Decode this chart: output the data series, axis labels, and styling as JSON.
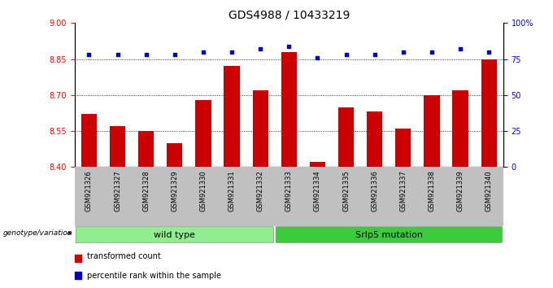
{
  "title": "GDS4988 / 10433219",
  "samples": [
    "GSM921326",
    "GSM921327",
    "GSM921328",
    "GSM921329",
    "GSM921330",
    "GSM921331",
    "GSM921332",
    "GSM921333",
    "GSM921334",
    "GSM921335",
    "GSM921336",
    "GSM921337",
    "GSM921338",
    "GSM921339",
    "GSM921340"
  ],
  "red_values": [
    8.62,
    8.57,
    8.55,
    8.5,
    8.68,
    8.82,
    8.72,
    8.88,
    8.42,
    8.65,
    8.63,
    8.56,
    8.7,
    8.72,
    8.85
  ],
  "blue_values": [
    78,
    78,
    78,
    78,
    80,
    80,
    82,
    84,
    76,
    78,
    78,
    80,
    80,
    82,
    80
  ],
  "ylim_left": [
    8.4,
    9.0
  ],
  "ylim_right": [
    0,
    100
  ],
  "left_ticks": [
    8.4,
    8.55,
    8.7,
    8.85,
    9.0
  ],
  "right_ticks": [
    0,
    25,
    50,
    75,
    100
  ],
  "right_tick_labels": [
    "0",
    "25",
    "50",
    "75",
    "100%"
  ],
  "groups": [
    {
      "label": "wild type",
      "start": 0,
      "end": 7,
      "color": "#90ee90"
    },
    {
      "label": "Srlp5 mutation",
      "start": 7,
      "end": 15,
      "color": "#3bcc3b"
    }
  ],
  "bar_color": "#cc0000",
  "dot_color": "#0000cc",
  "bg_color": "#c0c0c0",
  "title_fontsize": 10,
  "tick_fontsize": 7,
  "label_fontsize": 7.5
}
